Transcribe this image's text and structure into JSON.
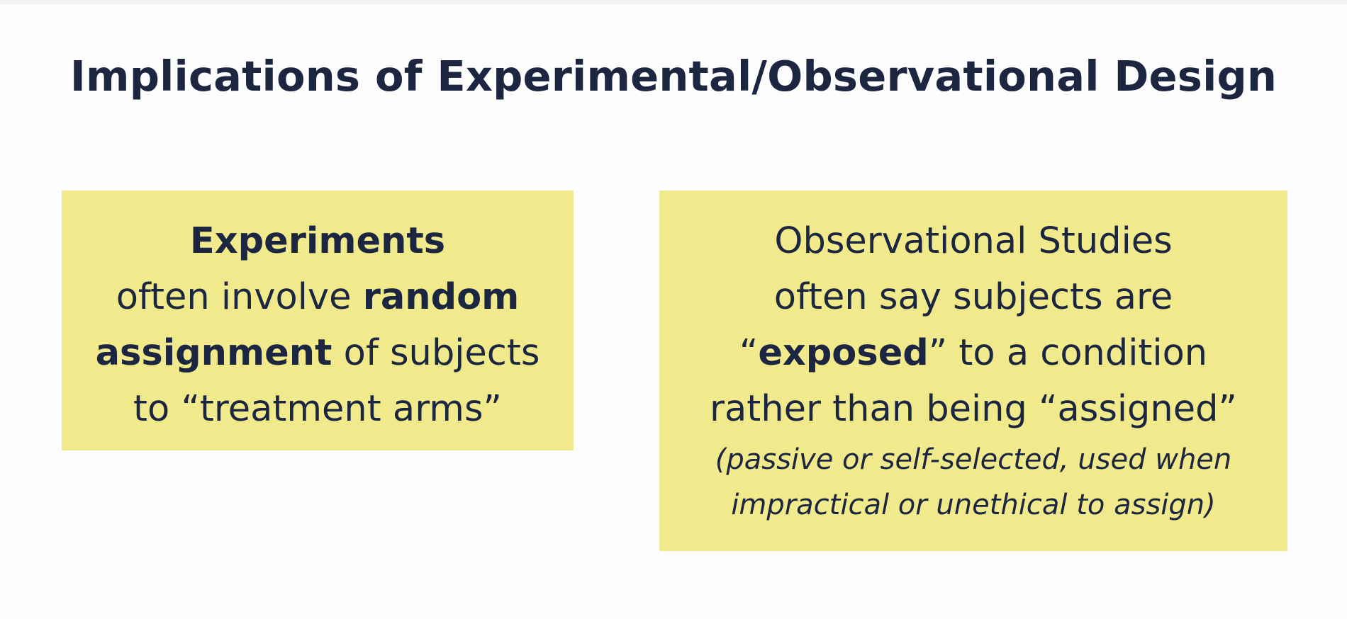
{
  "title": "Implications of Experimental/Observational Design",
  "experiments": {
    "heading": "Experiments",
    "line2_a": "often involve ",
    "line2_b": "random",
    "line3_a": "assignment",
    "line3_b": " of subjects",
    "line4": "to “treatment arms”"
  },
  "observational": {
    "heading": "Observational Studies",
    "line2": "often say subjects are",
    "line3_open": "“",
    "line3_bold": "exposed",
    "line3_rest": "” to a condition",
    "line4": "rather than being “assigned”",
    "note1": "(passive or self-selected, used when",
    "note2": "impractical or unethical to assign)"
  },
  "colors": {
    "box_fill": "#f0ea8c",
    "text": "#1c2640"
  }
}
